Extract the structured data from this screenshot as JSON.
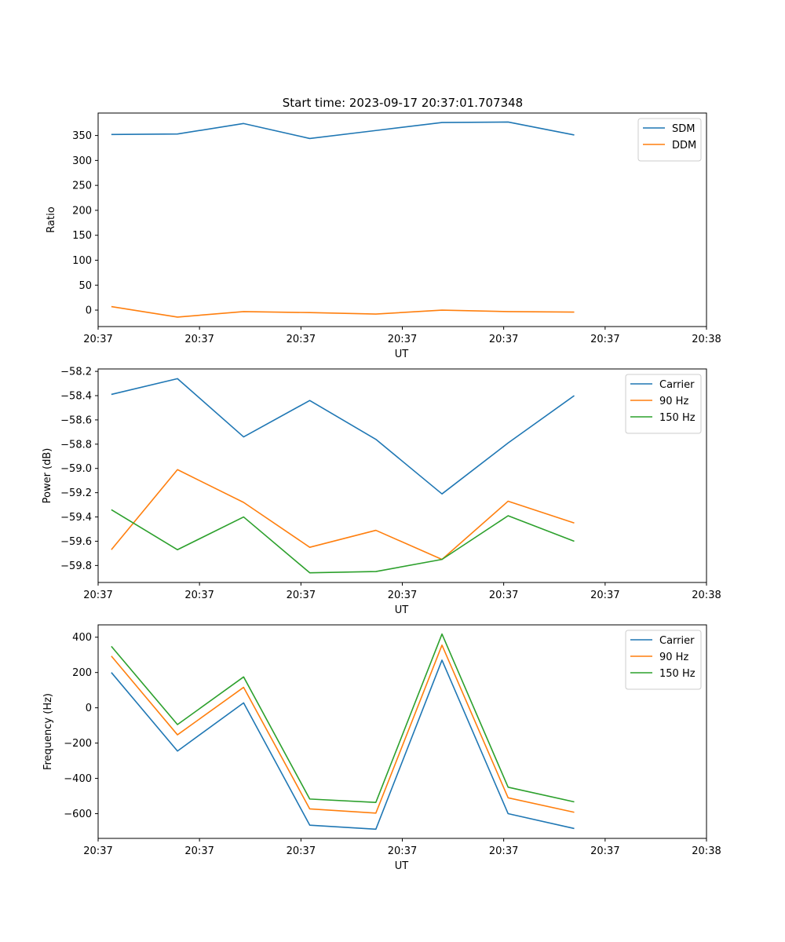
{
  "figure_title": "Start time: 2023-09-17 20:37:01.707348",
  "colors": {
    "blue": "#1f77b4",
    "orange": "#ff7f0e",
    "green": "#2ca02c"
  },
  "chart_data": [
    {
      "type": "line",
      "title": "Start time: 2023-09-17 20:37:01.707348",
      "xlabel": "UT",
      "ylabel": "Ratio",
      "x": [
        1,
        2,
        3,
        4,
        5,
        6,
        7,
        8
      ],
      "xlim": [
        0.8,
        10.0
      ],
      "ylim": [
        -33,
        395
      ],
      "xtick_values": [
        0.8,
        2.333,
        3.867,
        5.4,
        6.933,
        8.467,
        10.0
      ],
      "xtick_labels": [
        "20:37",
        "20:37",
        "20:37",
        "20:37",
        "20:37",
        "20:37",
        "20:38"
      ],
      "ytick_values": [
        0,
        50,
        100,
        150,
        200,
        250,
        300,
        350
      ],
      "ytick_labels": [
        "0",
        "50",
        "100",
        "150",
        "200",
        "250",
        "300",
        "350"
      ],
      "legend_position": "top-right",
      "series": [
        {
          "name": "SDM",
          "color": "#1f77b4",
          "values": [
            352,
            353,
            374,
            344,
            360,
            376,
            377,
            351
          ]
        },
        {
          "name": "DDM",
          "color": "#ff7f0e",
          "values": [
            7,
            -14,
            -3,
            -5,
            -8,
            0,
            -3,
            -4
          ]
        }
      ]
    },
    {
      "type": "line",
      "title": "",
      "xlabel": "UT",
      "ylabel": "Power (dB)",
      "x": [
        1,
        2,
        3,
        4,
        5,
        6,
        7,
        8
      ],
      "xlim": [
        0.8,
        10.0
      ],
      "ylim": [
        -59.94,
        -58.18
      ],
      "xtick_values": [
        0.8,
        2.333,
        3.867,
        5.4,
        6.933,
        8.467,
        10.0
      ],
      "xtick_labels": [
        "20:37",
        "20:37",
        "20:37",
        "20:37",
        "20:37",
        "20:37",
        "20:38"
      ],
      "ytick_values": [
        -58.2,
        -58.4,
        -58.6,
        -58.8,
        -59.0,
        -59.2,
        -59.4,
        -59.6,
        -59.8
      ],
      "ytick_labels": [
        "−58.2",
        "−58.4",
        "−58.6",
        "−58.8",
        "−59.0",
        "−59.2",
        "−59.4",
        "−59.6",
        "−59.8"
      ],
      "legend_position": "top-right",
      "series": [
        {
          "name": "Carrier",
          "color": "#1f77b4",
          "values": [
            -58.39,
            -58.26,
            -58.74,
            -58.44,
            -58.76,
            -59.21,
            -58.79,
            -58.4
          ]
        },
        {
          "name": "90 Hz",
          "color": "#ff7f0e",
          "values": [
            -59.67,
            -59.01,
            -59.28,
            -59.65,
            -59.51,
            -59.75,
            -59.27,
            -59.45
          ]
        },
        {
          "name": "150 Hz",
          "color": "#2ca02c",
          "values": [
            -59.34,
            -59.67,
            -59.4,
            -59.86,
            -59.85,
            -59.75,
            -59.39,
            -59.6
          ]
        }
      ]
    },
    {
      "type": "line",
      "title": "",
      "xlabel": "UT",
      "ylabel": "Frequency (Hz)",
      "x": [
        1,
        2,
        3,
        4,
        5,
        6,
        7,
        8
      ],
      "xlim": [
        0.8,
        10.0
      ],
      "ylim": [
        -740,
        470
      ],
      "xtick_values": [
        0.8,
        2.333,
        3.867,
        5.4,
        6.933,
        8.467,
        10.0
      ],
      "xtick_labels": [
        "20:37",
        "20:37",
        "20:37",
        "20:37",
        "20:37",
        "20:37",
        "20:38"
      ],
      "ytick_values": [
        400,
        200,
        0,
        -200,
        -400,
        -600
      ],
      "ytick_labels": [
        "400",
        "200",
        "0",
        "−200",
        "−400",
        "−600"
      ],
      "legend_position": "top-right",
      "series": [
        {
          "name": "Carrier",
          "color": "#1f77b4",
          "values": [
            200,
            -245,
            28,
            -665,
            -688,
            270,
            -600,
            -684
          ]
        },
        {
          "name": "90 Hz",
          "color": "#ff7f0e",
          "values": [
            293,
            -153,
            116,
            -573,
            -597,
            355,
            -510,
            -592
          ]
        },
        {
          "name": "150 Hz",
          "color": "#2ca02c",
          "values": [
            348,
            -95,
            175,
            -517,
            -536,
            418,
            -450,
            -533
          ]
        }
      ]
    }
  ]
}
